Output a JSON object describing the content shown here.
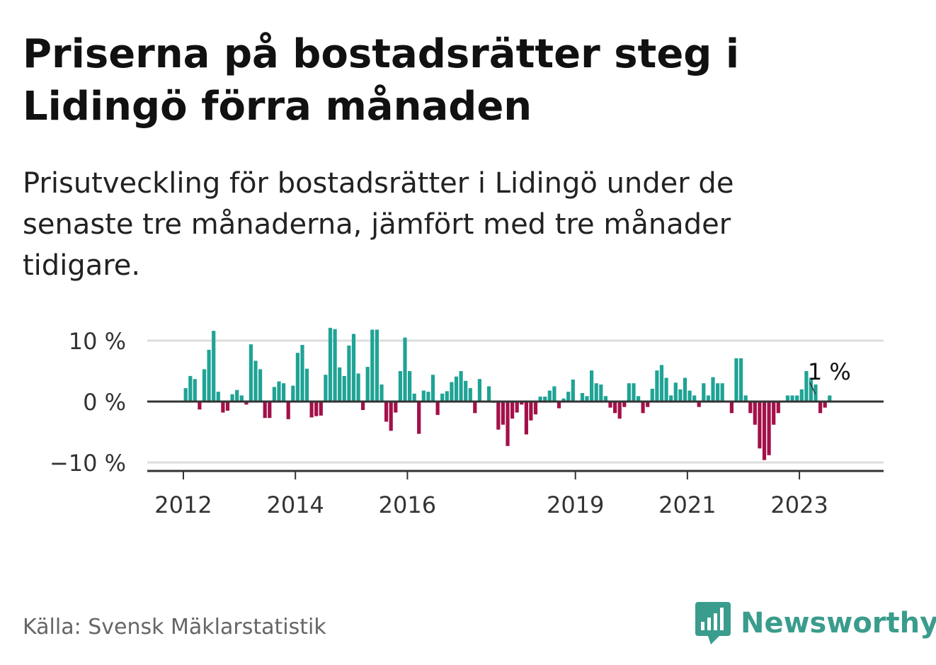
{
  "title": "Priserna på bostadsrätter steg i Lidingö förra månaden",
  "subtitle": "Prisutveckling för bostadsrätter i Lidingö under de senaste tre månaderna, jämfört med tre månader tidigare.",
  "source": "Källa: Svensk Mäklarstatistik",
  "brand": "Newsworthy",
  "colors": {
    "positive": "#1fa395",
    "negative": "#a3104a",
    "brand": "#3a9c8c",
    "grid": "#dddddd",
    "axis": "#333333"
  },
  "chart_data": {
    "type": "bar",
    "title": "",
    "xlabel": "",
    "ylabel": "",
    "ylim": [
      -11,
      12
    ],
    "yticks": [
      {
        "value": 10,
        "label": "10 %"
      },
      {
        "value": 0,
        "label": "0 %"
      },
      {
        "value": -10,
        "label": "−10 %"
      }
    ],
    "xticks": [
      {
        "value": 2012,
        "label": "2012"
      },
      {
        "value": 2014,
        "label": "2014"
      },
      {
        "value": 2016,
        "label": "2016"
      },
      {
        "value": 2019,
        "label": "2019"
      },
      {
        "value": 2021,
        "label": "2021"
      },
      {
        "value": 2023,
        "label": "2023"
      }
    ],
    "annotation": {
      "label": "1 %",
      "value": 1
    },
    "start": {
      "year": 2012,
      "month": 1
    },
    "values": [
      2.2,
      4.2,
      3.7,
      -1.3,
      5.3,
      8.5,
      11.6,
      1.6,
      -1.8,
      -1.5,
      1.2,
      1.9,
      1.0,
      -0.5,
      9.4,
      6.7,
      5.3,
      -2.7,
      -2.7,
      2.4,
      3.3,
      3.0,
      -2.9,
      2.6,
      8.0,
      9.3,
      5.4,
      -2.6,
      -2.4,
      -2.3,
      4.4,
      12.1,
      11.9,
      5.6,
      4.2,
      9.2,
      11.1,
      4.6,
      -1.4,
      5.7,
      11.8,
      11.8,
      2.8,
      -3.3,
      -4.8,
      -1.8,
      5.0,
      10.5,
      5.0,
      1.3,
      -5.3,
      1.8,
      1.6,
      4.4,
      -2.2,
      1.3,
      1.7,
      3.2,
      4.1,
      5.0,
      3.4,
      2.2,
      -1.9,
      3.7,
      0.0,
      2.5,
      -0.2,
      -4.6,
      -3.8,
      -7.3,
      -2.8,
      -1.8,
      -0.5,
      -5.4,
      -3.1,
      -2.1,
      0.8,
      0.8,
      1.8,
      2.5,
      -1.1,
      0.5,
      1.6,
      3.6,
      0.0,
      1.4,
      0.9,
      5.1,
      3.0,
      2.8,
      0.9,
      -1.0,
      -1.9,
      -2.8,
      -0.9,
      3.0,
      3.0,
      0.9,
      -1.9,
      -0.9,
      2.1,
      5.1,
      6.0,
      3.9,
      1.0,
      3.1,
      2.0,
      3.9,
      1.8,
      1.0,
      -0.9,
      3.0,
      1.0,
      4.0,
      3.0,
      3.0,
      0.0,
      -1.9,
      7.1,
      7.1,
      1.0,
      -1.9,
      -3.8,
      -7.7,
      -9.6,
      -8.8,
      -3.8,
      -1.9,
      0.0,
      1.0,
      1.0,
      1.0,
      2.0,
      5.0,
      3.9,
      2.8,
      -1.9,
      -1.0,
      1.0
    ]
  }
}
